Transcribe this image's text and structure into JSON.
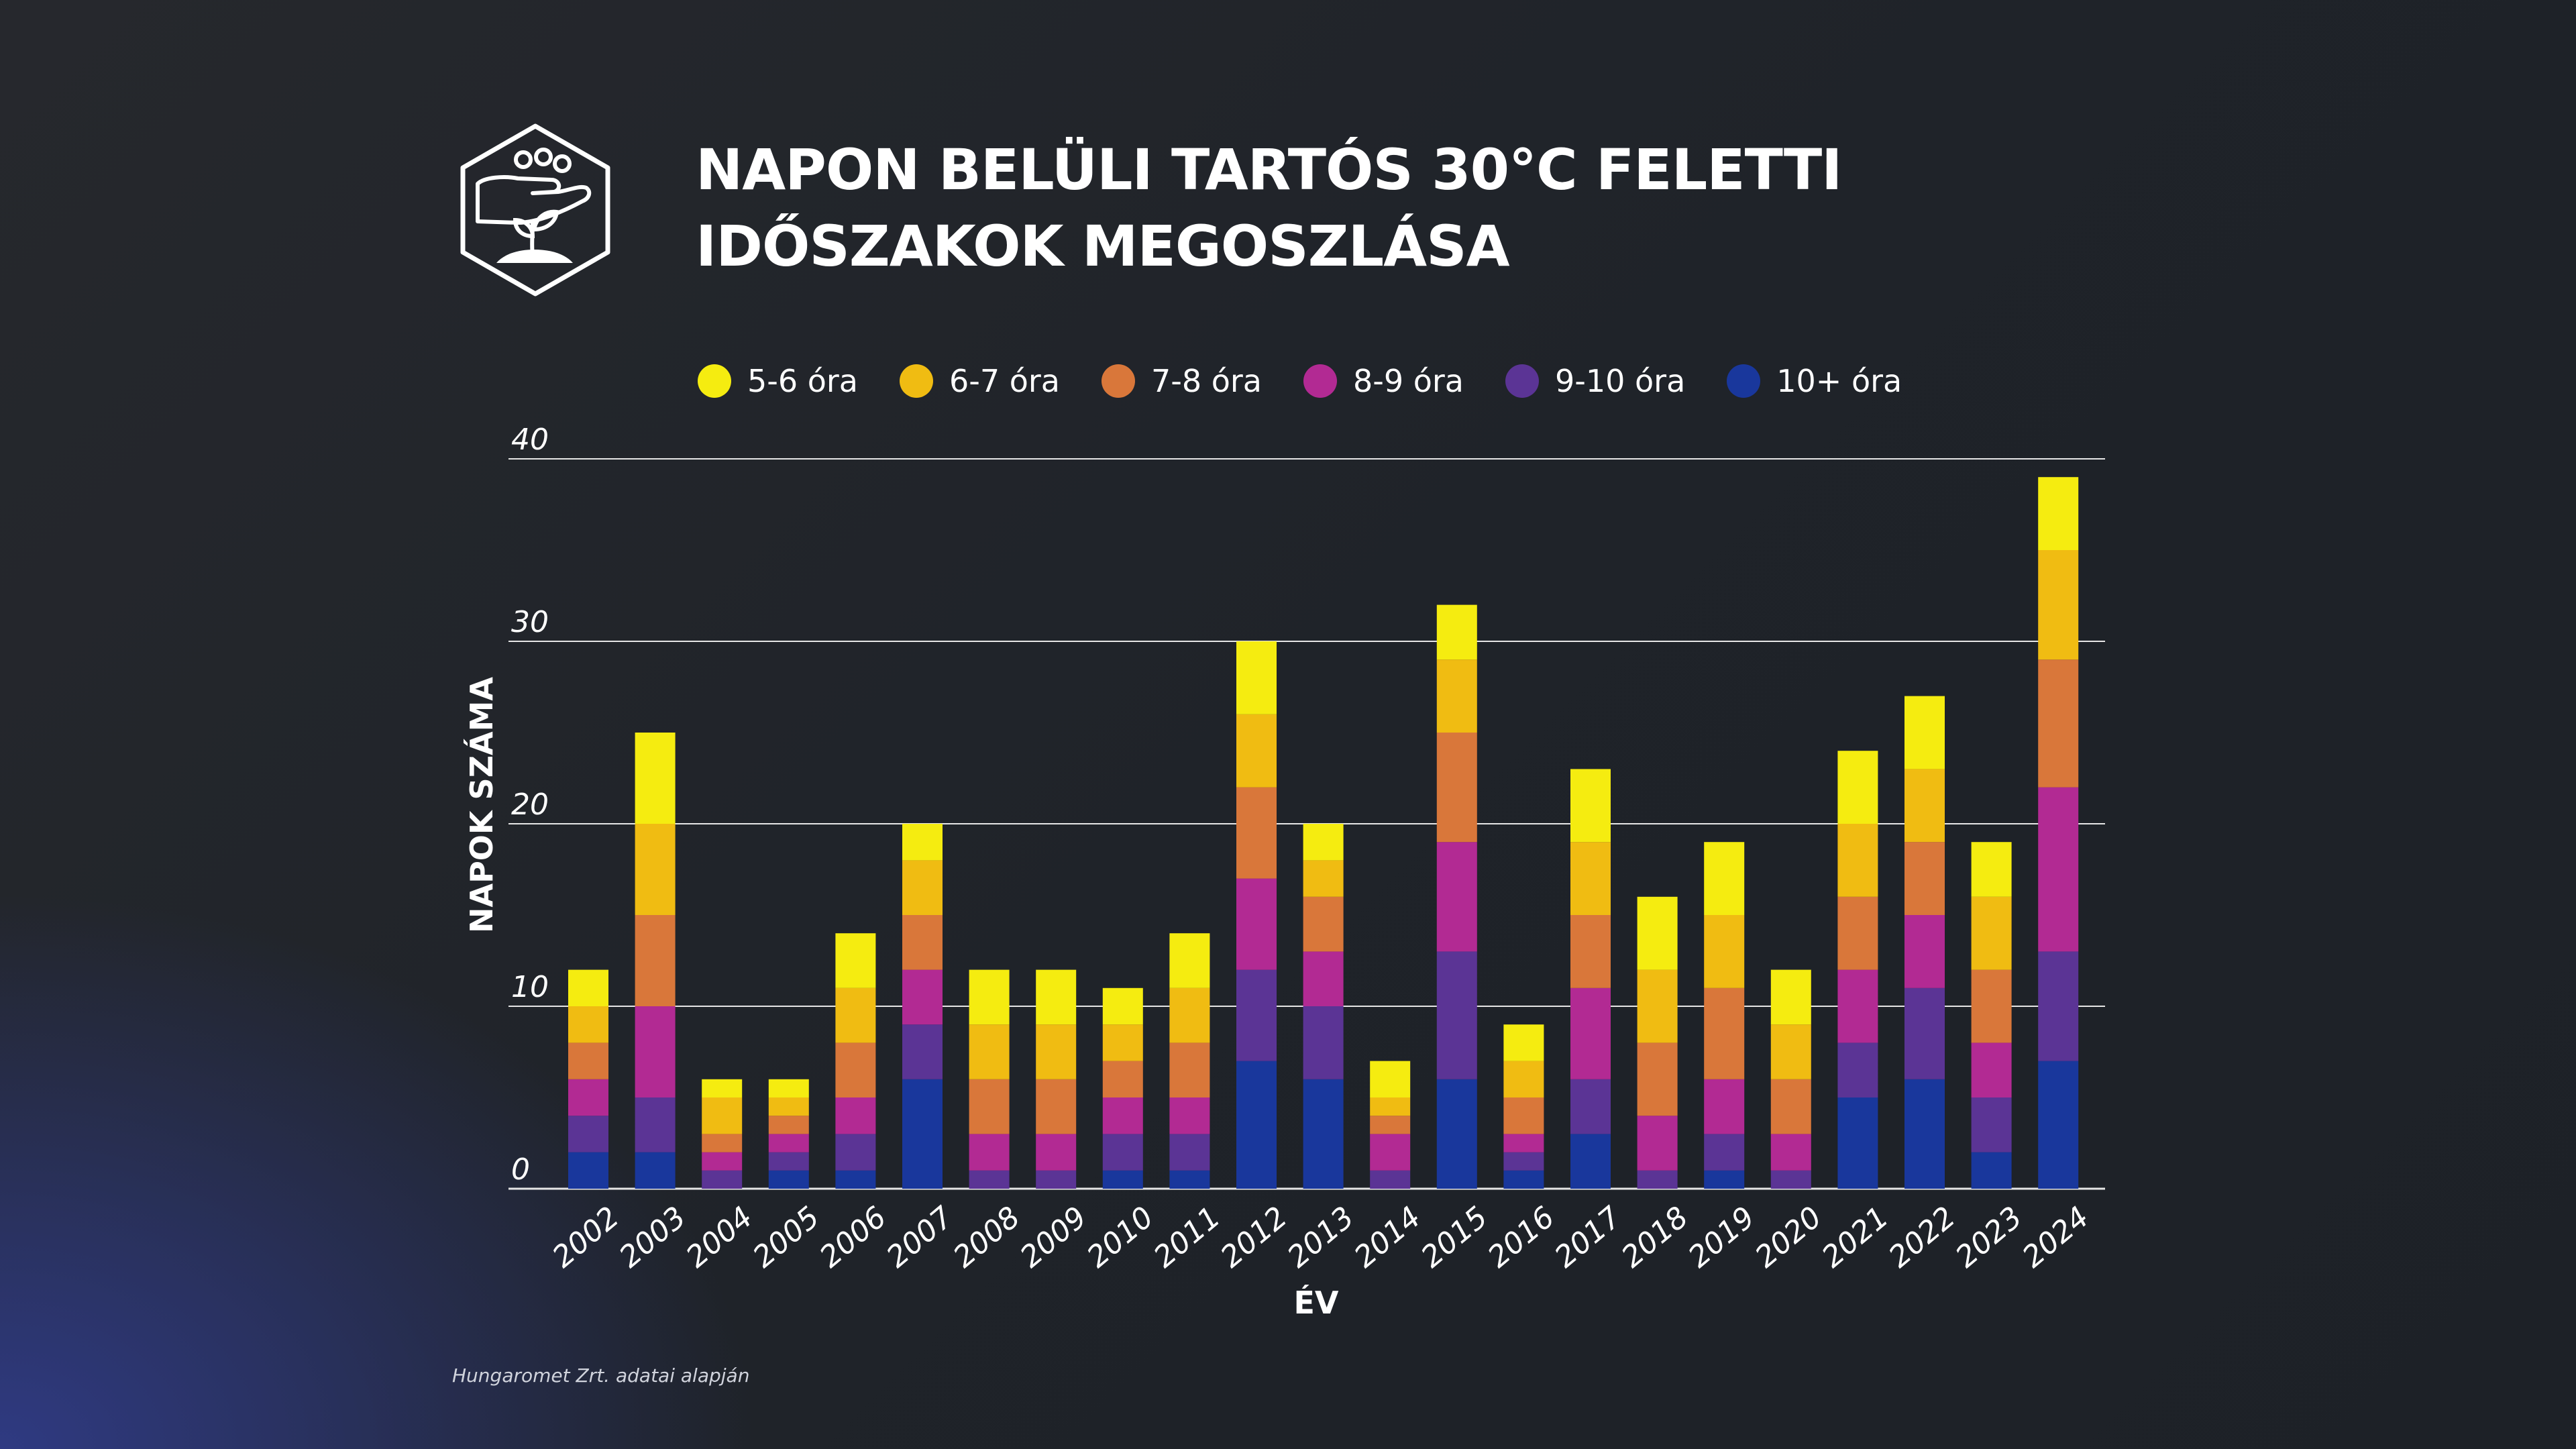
{
  "colors": {
    "series": [
      "#f5ec10",
      "#f0bc12",
      "#d9773a",
      "#b22a93",
      "#5b3495",
      "#19379c"
    ],
    "grid": "#e6e6e6",
    "text": "#ffffff"
  },
  "chart_data": {
    "type": "bar",
    "stacked": true,
    "title": "NAPON BELÜLI TARTÓS 30°C FELETTI IDŐSZAKOK MEGOSZLÁSA",
    "title_lines": [
      "NAPON BELÜLI TARTÓS 30°C FELETTI",
      "IDŐSZAKOK MEGOSZLÁSA"
    ],
    "xlabel": "ÉV",
    "ylabel": "NAPOK SZÁMA",
    "ylim": [
      0,
      40
    ],
    "yticks": [
      0,
      10,
      20,
      30,
      40
    ],
    "grid": true,
    "legend_position": "top",
    "categories": [
      "2002",
      "2003",
      "2004",
      "2005",
      "2006",
      "2007",
      "2008",
      "2009",
      "2010",
      "2011",
      "2012",
      "2013",
      "2014",
      "2015",
      "2016",
      "2017",
      "2018",
      "2019",
      "2020",
      "2021",
      "2022",
      "2023",
      "2024"
    ],
    "series": [
      {
        "name": "5-6 óra",
        "values": [
          2,
          5,
          1,
          1,
          3,
          2,
          3,
          3,
          2,
          3,
          4,
          2,
          2,
          3,
          2,
          4,
          4,
          4,
          3,
          4,
          4,
          3,
          4
        ]
      },
      {
        "name": "6-7 óra",
        "values": [
          2,
          5,
          2,
          1,
          3,
          3,
          3,
          3,
          2,
          3,
          4,
          2,
          1,
          4,
          2,
          4,
          4,
          4,
          3,
          4,
          4,
          4,
          6
        ]
      },
      {
        "name": "7-8 óra",
        "values": [
          2,
          5,
          1,
          1,
          3,
          3,
          3,
          3,
          2,
          3,
          5,
          3,
          1,
          6,
          2,
          4,
          4,
          5,
          3,
          4,
          4,
          4,
          7
        ]
      },
      {
        "name": "8-9 óra",
        "values": [
          2,
          5,
          1,
          1,
          2,
          3,
          2,
          2,
          2,
          2,
          5,
          3,
          2,
          6,
          1,
          5,
          3,
          3,
          2,
          4,
          4,
          3,
          9
        ]
      },
      {
        "name": "9-10 óra",
        "values": [
          2,
          3,
          1,
          1,
          2,
          3,
          1,
          1,
          2,
          2,
          5,
          4,
          1,
          7,
          1,
          3,
          1,
          2,
          1,
          3,
          5,
          3,
          6
        ]
      },
      {
        "name": "10+ óra",
        "values": [
          2,
          2,
          0,
          1,
          1,
          6,
          0,
          0,
          1,
          1,
          7,
          6,
          0,
          6,
          1,
          3,
          0,
          1,
          0,
          5,
          6,
          2,
          7
        ]
      }
    ]
  },
  "source_note": "Hungaromet Zrt. adatai alapján"
}
